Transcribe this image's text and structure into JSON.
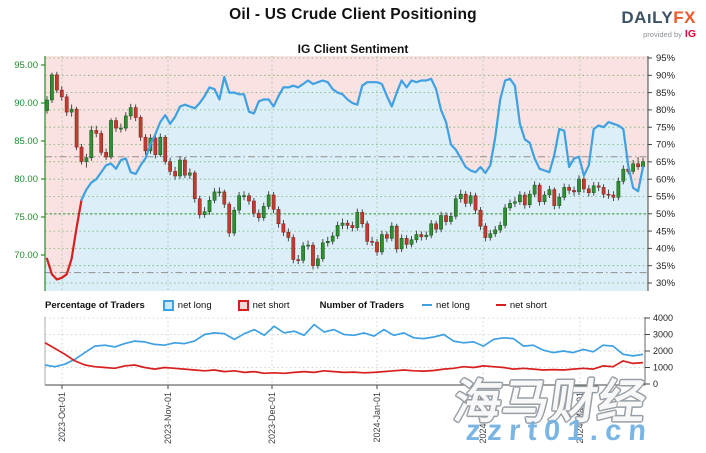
{
  "header": {
    "title": "Oil - US Crude Client Positioning",
    "subtitle": "IG Client Sentiment",
    "logo": {
      "daily": "DAıLY",
      "fx": "FX",
      "provided_by": "provided by",
      "ig": "IG"
    }
  },
  "legend": {
    "pct_title": "Percentage of Traders",
    "pct_long": "net long",
    "pct_short": "net short",
    "num_title": "Number of Traders",
    "num_long": "net long",
    "num_short": "net short"
  },
  "watermark": {
    "line1": "海马财经",
    "line2": "zzrt01.cn"
  },
  "colors": {
    "net_long_line": "#3fa0e2",
    "net_short_line": "#d81f1f",
    "candle_up": "#2f8f32",
    "candle_up_edge": "#145214",
    "candle_down": "#c23b31",
    "candle_down_edge": "#7c1f18",
    "wick": "#3a3a3a",
    "fill_above": "#f9e2e1",
    "fill_below": "#dceef8",
    "grid_green": "#58a858",
    "grid_gray": "#c3c9c3",
    "refline_gray": "#8f8f8f",
    "axis_left_text": "#1e8c2a",
    "axis_right_text": "#222222",
    "date_text": "#3a3f44",
    "spine_left": "#2a8a2a",
    "spine_dark": "#444444",
    "logo_daily": "#3d5265",
    "logo_fx": "#f05a28",
    "logo_ig": "#e4003c",
    "watermark_blue": "#73b2e2"
  },
  "chart_data": [
    {
      "type": "candlestick+line",
      "title": "IG Client Sentiment",
      "ylabel_left": "price",
      "ylabel_right": "percent of traders net-long",
      "left_ticks": [
        {
          "label": "95.00",
          "value": 95
        },
        {
          "label": "90.00",
          "value": 90
        },
        {
          "label": "85.00",
          "value": 85
        },
        {
          "label": "80.00",
          "value": 80
        },
        {
          "label": "75.00",
          "value": 75
        },
        {
          "label": "70.00",
          "value": 70
        }
      ],
      "right_ticks": [
        {
          "label": "95%",
          "value": 95
        },
        {
          "label": "90%",
          "value": 90
        },
        {
          "label": "85%",
          "value": 85
        },
        {
          "label": "80%",
          "value": 80
        },
        {
          "label": "75%",
          "value": 75
        },
        {
          "label": "70%",
          "value": 70
        },
        {
          "label": "65%",
          "value": 65
        },
        {
          "label": "60%",
          "value": 60
        },
        {
          "label": "55%",
          "value": 55
        },
        {
          "label": "50%",
          "value": 50
        },
        {
          "label": "45%",
          "value": 45
        },
        {
          "label": "40%",
          "value": 40
        },
        {
          "label": "35%",
          "value": 35
        },
        {
          "label": "30%",
          "value": 30
        }
      ],
      "x_ticks": [
        {
          "label": "2023-Oct-01",
          "x": 62
        },
        {
          "label": "2023-Nov-01",
          "x": 168
        },
        {
          "label": "2023-Dec-01",
          "x": 272
        },
        {
          "label": "2024-Jan-01",
          "x": 377
        },
        {
          "label": "2024-Feb-01",
          "x": 483
        },
        {
          "label": "2024-Mar-01",
          "x": 580
        }
      ],
      "reference_lines_pct": [
        66.5,
        33
      ],
      "candles_ohlc": [
        [
          89.0,
          90.9,
          88.6,
          90.4
        ],
        [
          90.4,
          94.0,
          90.0,
          93.7
        ],
        [
          93.7,
          94.1,
          91.3,
          91.7
        ],
        [
          91.7,
          92.2,
          90.3,
          90.8
        ],
        [
          90.8,
          91.2,
          88.3,
          88.8
        ],
        [
          88.8,
          89.8,
          88.2,
          89.2
        ],
        [
          89.2,
          89.5,
          83.8,
          84.2
        ],
        [
          84.2,
          84.6,
          81.9,
          82.3
        ],
        [
          82.3,
          83.3,
          81.5,
          82.8
        ],
        [
          82.8,
          87.0,
          82.4,
          86.4
        ],
        [
          86.4,
          87.0,
          85.5,
          86.0
        ],
        [
          86.0,
          86.4,
          83.1,
          83.5
        ],
        [
          83.5,
          84.0,
          82.5,
          82.9
        ],
        [
          82.9,
          88.0,
          82.6,
          87.7
        ],
        [
          87.7,
          88.1,
          86.2,
          86.7
        ],
        [
          86.7,
          87.3,
          86.1,
          86.7
        ],
        [
          86.7,
          88.8,
          86.3,
          88.3
        ],
        [
          88.3,
          89.9,
          87.8,
          89.4
        ],
        [
          89.4,
          89.8,
          87.6,
          88.1
        ],
        [
          88.1,
          88.4,
          85.0,
          85.5
        ],
        [
          85.5,
          85.9,
          83.2,
          83.7
        ],
        [
          83.7,
          85.9,
          83.3,
          85.4
        ],
        [
          85.4,
          85.8,
          82.7,
          83.2
        ],
        [
          83.2,
          86.0,
          82.9,
          85.5
        ],
        [
          85.5,
          85.8,
          81.9,
          82.3
        ],
        [
          82.3,
          82.8,
          80.5,
          81.0
        ],
        [
          81.0,
          81.6,
          79.9,
          80.4
        ],
        [
          80.4,
          83.0,
          80.0,
          82.5
        ],
        [
          82.5,
          82.9,
          80.1,
          80.5
        ],
        [
          80.5,
          81.4,
          80.0,
          80.8
        ],
        [
          80.8,
          81.1,
          76.9,
          77.4
        ],
        [
          77.4,
          77.8,
          74.8,
          75.3
        ],
        [
          75.3,
          76.3,
          74.9,
          75.7
        ],
        [
          75.7,
          77.7,
          75.3,
          77.2
        ],
        [
          77.2,
          78.8,
          76.8,
          78.3
        ],
        [
          78.3,
          78.9,
          77.7,
          78.3
        ],
        [
          78.3,
          78.6,
          76.2,
          76.7
        ],
        [
          76.7,
          77.0,
          72.4,
          72.9
        ],
        [
          72.9,
          76.3,
          72.5,
          75.9
        ],
        [
          75.9,
          78.3,
          75.5,
          77.8
        ],
        [
          77.8,
          78.4,
          77.2,
          77.8
        ],
        [
          77.8,
          78.2,
          76.6,
          77.1
        ],
        [
          77.1,
          77.5,
          75.0,
          75.5
        ],
        [
          75.5,
          76.0,
          74.4,
          74.9
        ],
        [
          74.9,
          76.9,
          74.5,
          76.4
        ],
        [
          76.4,
          78.4,
          76.0,
          77.9
        ],
        [
          77.9,
          78.3,
          75.5,
          76.0
        ],
        [
          76.0,
          76.4,
          73.6,
          74.1
        ],
        [
          74.1,
          74.6,
          72.5,
          73.0
        ],
        [
          73.0,
          73.5,
          71.8,
          72.3
        ],
        [
          72.3,
          72.7,
          68.9,
          69.4
        ],
        [
          69.4,
          70.0,
          68.8,
          69.3
        ],
        [
          69.3,
          71.7,
          68.9,
          71.2
        ],
        [
          71.2,
          71.9,
          70.7,
          71.3
        ],
        [
          71.3,
          71.7,
          68.1,
          68.6
        ],
        [
          68.6,
          70.0,
          68.2,
          69.5
        ],
        [
          69.5,
          72.1,
          69.1,
          71.6
        ],
        [
          71.6,
          72.4,
          71.1,
          71.8
        ],
        [
          71.8,
          73.0,
          71.4,
          72.5
        ],
        [
          72.5,
          74.4,
          72.1,
          73.9
        ],
        [
          73.9,
          74.8,
          73.4,
          74.2
        ],
        [
          74.2,
          74.6,
          73.4,
          73.9
        ],
        [
          73.9,
          74.4,
          73.1,
          73.6
        ],
        [
          73.6,
          76.1,
          73.2,
          75.6
        ],
        [
          75.6,
          76.0,
          73.6,
          74.1
        ],
        [
          74.1,
          74.5,
          71.3,
          71.8
        ],
        [
          71.8,
          72.4,
          71.2,
          71.7
        ],
        [
          71.7,
          72.1,
          69.9,
          70.4
        ],
        [
          70.4,
          73.2,
          70.0,
          72.7
        ],
        [
          72.7,
          73.1,
          71.7,
          72.2
        ],
        [
          72.2,
          74.3,
          71.8,
          73.8
        ],
        [
          73.8,
          74.1,
          70.3,
          70.8
        ],
        [
          70.8,
          72.7,
          70.4,
          72.2
        ],
        [
          72.2,
          72.6,
          70.9,
          71.4
        ],
        [
          71.4,
          72.5,
          71.0,
          72.0
        ],
        [
          72.0,
          73.2,
          71.6,
          72.7
        ],
        [
          72.7,
          73.1,
          71.9,
          72.4
        ],
        [
          72.4,
          73.1,
          72.0,
          72.6
        ],
        [
          72.6,
          74.6,
          72.2,
          74.1
        ],
        [
          74.1,
          74.5,
          72.9,
          73.4
        ],
        [
          73.4,
          75.7,
          73.0,
          75.2
        ],
        [
          75.2,
          75.6,
          73.9,
          74.4
        ],
        [
          74.4,
          75.6,
          74.0,
          75.1
        ],
        [
          75.1,
          77.9,
          74.7,
          77.4
        ],
        [
          77.4,
          78.6,
          76.9,
          78.0
        ],
        [
          78.0,
          78.4,
          76.3,
          76.8
        ],
        [
          76.8,
          78.3,
          76.4,
          77.8
        ],
        [
          77.8,
          78.2,
          75.4,
          75.9
        ],
        [
          75.9,
          76.3,
          73.3,
          73.8
        ],
        [
          73.8,
          74.2,
          71.8,
          72.3
        ],
        [
          72.3,
          73.3,
          71.9,
          72.8
        ],
        [
          72.8,
          73.8,
          72.4,
          73.3
        ],
        [
          73.3,
          74.4,
          72.9,
          73.9
        ],
        [
          73.9,
          76.7,
          73.5,
          76.2
        ],
        [
          76.2,
          77.3,
          75.8,
          76.8
        ],
        [
          76.8,
          77.6,
          76.3,
          77.0
        ],
        [
          77.0,
          78.4,
          76.6,
          77.9
        ],
        [
          77.9,
          78.3,
          76.1,
          76.6
        ],
        [
          76.6,
          78.5,
          76.2,
          78.0
        ],
        [
          78.0,
          79.7,
          77.6,
          79.2
        ],
        [
          79.2,
          79.5,
          76.5,
          77.0
        ],
        [
          77.0,
          78.4,
          76.6,
          77.9
        ],
        [
          77.9,
          79.1,
          77.5,
          78.6
        ],
        [
          78.6,
          78.9,
          76.0,
          76.5
        ],
        [
          76.5,
          78.1,
          76.1,
          77.6
        ],
        [
          77.6,
          79.4,
          77.2,
          78.9
        ],
        [
          78.9,
          79.3,
          78.0,
          78.5
        ],
        [
          78.5,
          79.0,
          77.8,
          78.3
        ],
        [
          78.3,
          80.5,
          77.9,
          80.0
        ],
        [
          80.0,
          80.4,
          78.2,
          78.7
        ],
        [
          78.7,
          79.2,
          77.7,
          78.2
        ],
        [
          78.2,
          79.6,
          77.8,
          79.1
        ],
        [
          79.1,
          79.6,
          78.4,
          78.9
        ],
        [
          78.9,
          79.3,
          77.5,
          78.0
        ],
        [
          78.0,
          78.6,
          77.4,
          77.9
        ],
        [
          77.9,
          78.4,
          77.1,
          77.6
        ],
        [
          77.6,
          80.2,
          77.2,
          79.7
        ],
        [
          79.7,
          81.8,
          79.3,
          81.3
        ],
        [
          81.3,
          82.3,
          80.6,
          81.0
        ],
        [
          81.0,
          82.5,
          80.6,
          82.0
        ],
        [
          82.0,
          82.9,
          81.2,
          81.6
        ],
        [
          81.6,
          82.8,
          81.1,
          82.3
        ]
      ],
      "net_long_pct": [
        37,
        32.5,
        31,
        31.5,
        32.5,
        37,
        46,
        54,
        57,
        59,
        60,
        62,
        64,
        64.5,
        63,
        65.5,
        66,
        62,
        61.5,
        64,
        66,
        70,
        73,
        76.5,
        78.5,
        76,
        78,
        81,
        81.5,
        81,
        80.5,
        82,
        84,
        86.5,
        86,
        83,
        89.5,
        85,
        85,
        84.5,
        84.5,
        79.5,
        79,
        82.5,
        83,
        83,
        81,
        84,
        86.5,
        86.5,
        87,
        86.5,
        87.5,
        88.5,
        87.5,
        88,
        88.5,
        88,
        86,
        85,
        84.5,
        83,
        82,
        81.5,
        87,
        88,
        88,
        88,
        87.5,
        84,
        81,
        85,
        88.5,
        86.5,
        88.5,
        88,
        88.5,
        88.5,
        89,
        86,
        80,
        76.5,
        70,
        68.5,
        66,
        63.5,
        62.5,
        62,
        63.5,
        61.8,
        64,
        72,
        83,
        88.5,
        89,
        87,
        76,
        71.5,
        70.5,
        66,
        63,
        62.5,
        62,
        67,
        74.5,
        74,
        63.5,
        66,
        66.5,
        61,
        64,
        74.5,
        75.5,
        75,
        76.5,
        76,
        75.5,
        74.5,
        64,
        57.5,
        56.5,
        63.5
      ],
      "ylim_left": [
        67.5,
        96.5
      ],
      "ylim_right_pct": [
        30,
        95
      ],
      "grid": "dotted green horizontal every 5%, dotted vertical at month starts"
    },
    {
      "type": "line",
      "right_ticks": [
        {
          "label": "4000",
          "value": 4000
        },
        {
          "label": "3000",
          "value": 3000
        },
        {
          "label": "2000",
          "value": 2000
        },
        {
          "label": "1000",
          "value": 1000
        },
        {
          "label": "0",
          "value": 0
        }
      ],
      "ylim": [
        0,
        4000
      ],
      "series": [
        {
          "name": "net long",
          "color": "#3fa0e2",
          "values": [
            1150,
            1050,
            1200,
            1500,
            1900,
            2300,
            2350,
            2250,
            2450,
            2600,
            2550,
            2400,
            2350,
            2500,
            2450,
            2600,
            3000,
            3100,
            3050,
            2700,
            3050,
            3300,
            2950,
            3500,
            3100,
            3200,
            2950,
            3600,
            3150,
            3300,
            3000,
            2950,
            3100,
            2900,
            3300,
            2950,
            3100,
            2800,
            2750,
            2850,
            3000,
            2600,
            2500,
            2550,
            2300,
            2700,
            2800,
            2750,
            2300,
            2350,
            2050,
            1900,
            2000,
            1900,
            2100,
            1950,
            2350,
            2300,
            1800,
            1700,
            1800
          ]
        },
        {
          "name": "net short",
          "color": "#d81f1f",
          "values": [
            2500,
            2150,
            1800,
            1400,
            1150,
            1050,
            1000,
            950,
            1100,
            1150,
            1000,
            900,
            1000,
            950,
            900,
            850,
            800,
            850,
            750,
            800,
            700,
            750,
            650,
            680,
            650,
            700,
            750,
            700,
            800,
            750,
            700,
            720,
            680,
            700,
            750,
            800,
            850,
            800,
            780,
            820,
            900,
            950,
            1050,
            1000,
            1100,
            1050,
            1000,
            900,
            950,
            900,
            850,
            870,
            850,
            900,
            950,
            900,
            1100,
            1050,
            1400,
            1250,
            1300
          ]
        }
      ]
    }
  ]
}
